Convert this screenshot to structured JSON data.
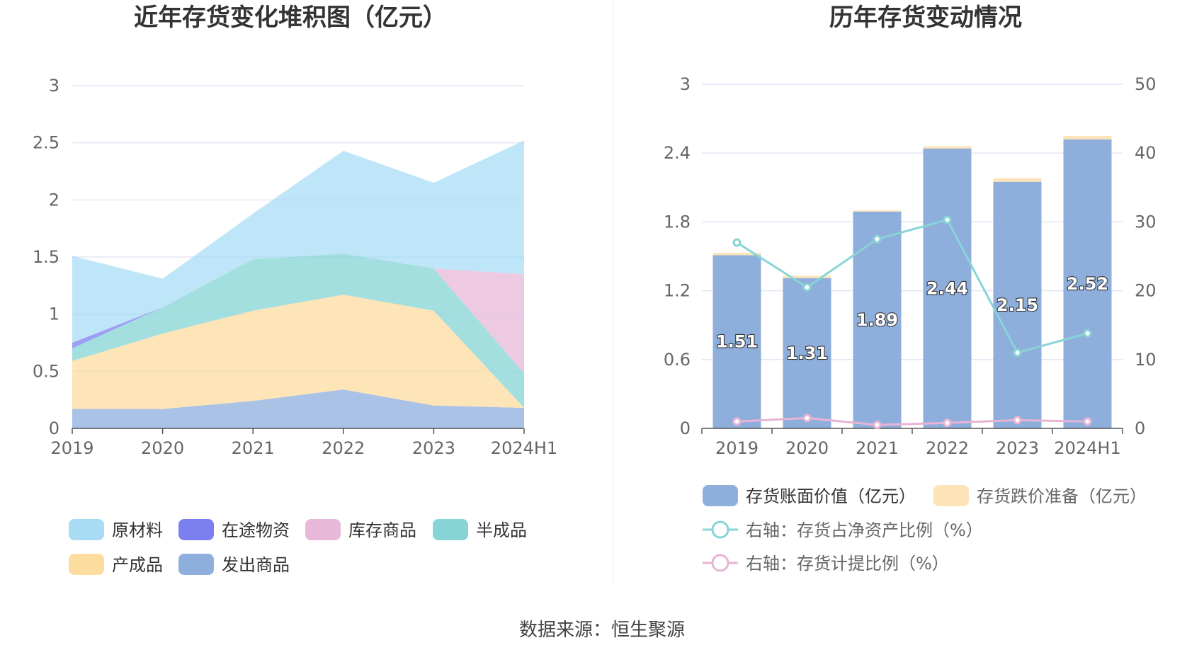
{
  "source": "数据来源：恒生聚源",
  "colors": {
    "原材料": "#a8dcf5",
    "在途物资": "#7b7ff0",
    "库存商品": "#e8b8d8",
    "半成品": "#86d4d6",
    "产成品": "#fddca0",
    "发出商品": "#8eaedc",
    "bar_main": "#8eaedc",
    "bar_reserve": "#fde3b8",
    "line_ratio": "#88d4d6",
    "line_provision": "#e8b4d6",
    "grid": "#e2e6f5",
    "axis": "#555555"
  },
  "chart_data": [
    {
      "type": "area",
      "stacked": true,
      "title": "近年存货变化堆积图（亿元）",
      "categories": [
        "2019",
        "2020",
        "2021",
        "2022",
        "2023",
        "2024H1"
      ],
      "ylim": [
        0,
        3
      ],
      "yticks": [
        "0",
        "0.5",
        "1",
        "1.5",
        "2",
        "2.5",
        "3"
      ],
      "grid": true,
      "legend_position": "bottom",
      "series": [
        {
          "name": "发出商品",
          "values": [
            0.17,
            0.17,
            0.24,
            0.34,
            0.2,
            0.18
          ]
        },
        {
          "name": "产成品",
          "values": [
            0.42,
            0.66,
            0.79,
            0.83,
            0.83,
            0.0
          ]
        },
        {
          "name": "半成品",
          "values": [
            0.11,
            0.23,
            0.45,
            0.36,
            0.37,
            0.3
          ]
        },
        {
          "name": "库存商品",
          "values": [
            0.0,
            0.0,
            0.0,
            0.0,
            0.0,
            0.87
          ]
        },
        {
          "name": "在途物资",
          "values": [
            0.05,
            0.0,
            0.0,
            0.0,
            0.0,
            0.0
          ]
        },
        {
          "name": "原材料",
          "values": [
            0.76,
            0.25,
            0.4,
            0.9,
            0.75,
            1.17
          ]
        }
      ],
      "legend": [
        "原材料",
        "在途物资",
        "库存商品",
        "半成品",
        "产成品",
        "发出商品"
      ]
    },
    {
      "type": "bar",
      "stacked": true,
      "title": "历年存货变动情况",
      "categories": [
        "2019",
        "2020",
        "2021",
        "2022",
        "2023",
        "2024H1"
      ],
      "ylim": [
        0,
        3
      ],
      "yticks": [
        "0",
        "0.6",
        "1.2",
        "1.8",
        "2.4",
        "3"
      ],
      "y2lim": [
        0,
        50
      ],
      "y2ticks": [
        "0",
        "10",
        "20",
        "30",
        "40",
        "50"
      ],
      "grid": true,
      "legend_position": "bottom",
      "series": [
        {
          "name": "存货账面价值（亿元）",
          "values": [
            1.51,
            1.31,
            1.89,
            2.44,
            2.15,
            2.52
          ],
          "labels": [
            "1.51",
            "1.31",
            "1.89",
            "2.44",
            "2.15",
            "2.52"
          ]
        },
        {
          "name": "存货跌价准备（亿元）",
          "values": [
            0.02,
            0.02,
            0.01,
            0.02,
            0.03,
            0.03
          ]
        }
      ],
      "lines": [
        {
          "name": "右轴：存货占净资产比例（%）",
          "values": [
            27.0,
            20.5,
            27.5,
            30.3,
            11.0,
            13.8
          ]
        },
        {
          "name": "右轴：存货计提比例（%）",
          "values": [
            1.0,
            1.5,
            0.5,
            0.8,
            1.2,
            1.0
          ]
        }
      ]
    }
  ]
}
